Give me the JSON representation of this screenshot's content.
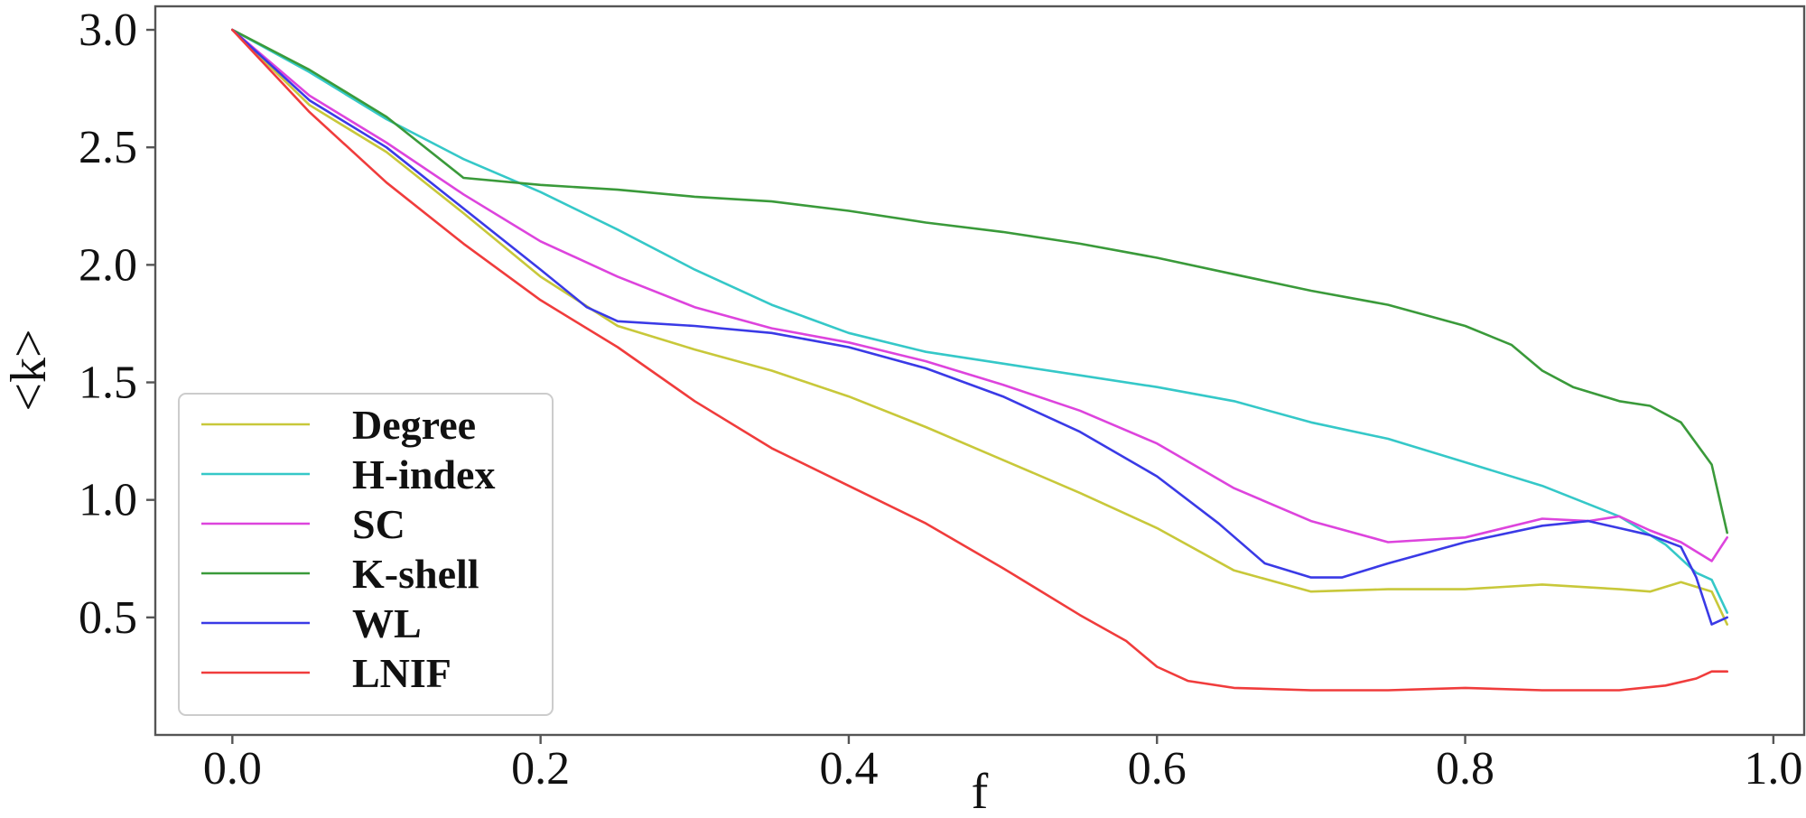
{
  "chart_data": {
    "type": "line",
    "title": "",
    "xlabel": "f",
    "ylabel": "<k>",
    "xlim": [
      -0.05,
      1.02
    ],
    "ylim": [
      0.0,
      3.1
    ],
    "xticks": [
      "0.0",
      "0.2",
      "0.4",
      "0.6",
      "0.8",
      "1.0"
    ],
    "yticks": [
      "0.5",
      "1.0",
      "1.5",
      "2.0",
      "2.5",
      "3.0"
    ],
    "grid": false,
    "legend_position": "lower-left",
    "series": [
      {
        "name": "Degree",
        "color": "#c8c83a",
        "points": [
          [
            0.0,
            3.0
          ],
          [
            0.05,
            2.68
          ],
          [
            0.1,
            2.48
          ],
          [
            0.15,
            2.22
          ],
          [
            0.2,
            1.95
          ],
          [
            0.25,
            1.74
          ],
          [
            0.3,
            1.64
          ],
          [
            0.35,
            1.55
          ],
          [
            0.4,
            1.44
          ],
          [
            0.45,
            1.31
          ],
          [
            0.5,
            1.17
          ],
          [
            0.55,
            1.03
          ],
          [
            0.6,
            0.88
          ],
          [
            0.65,
            0.7
          ],
          [
            0.7,
            0.61
          ],
          [
            0.75,
            0.62
          ],
          [
            0.8,
            0.62
          ],
          [
            0.85,
            0.64
          ],
          [
            0.9,
            0.62
          ],
          [
            0.92,
            0.61
          ],
          [
            0.94,
            0.65
          ],
          [
            0.96,
            0.61
          ],
          [
            0.97,
            0.47
          ]
        ]
      },
      {
        "name": "H-index",
        "color": "#35c8c8",
        "points": [
          [
            0.0,
            3.0
          ],
          [
            0.05,
            2.82
          ],
          [
            0.1,
            2.62
          ],
          [
            0.15,
            2.45
          ],
          [
            0.2,
            2.31
          ],
          [
            0.25,
            2.15
          ],
          [
            0.3,
            1.98
          ],
          [
            0.35,
            1.83
          ],
          [
            0.4,
            1.71
          ],
          [
            0.45,
            1.63
          ],
          [
            0.5,
            1.58
          ],
          [
            0.55,
            1.53
          ],
          [
            0.6,
            1.48
          ],
          [
            0.65,
            1.42
          ],
          [
            0.7,
            1.33
          ],
          [
            0.75,
            1.26
          ],
          [
            0.8,
            1.16
          ],
          [
            0.85,
            1.06
          ],
          [
            0.9,
            0.93
          ],
          [
            0.93,
            0.81
          ],
          [
            0.95,
            0.69
          ],
          [
            0.96,
            0.66
          ],
          [
            0.97,
            0.52
          ]
        ]
      },
      {
        "name": "SC",
        "color": "#dd44dd",
        "points": [
          [
            0.0,
            3.0
          ],
          [
            0.05,
            2.72
          ],
          [
            0.1,
            2.52
          ],
          [
            0.15,
            2.3
          ],
          [
            0.2,
            2.1
          ],
          [
            0.25,
            1.95
          ],
          [
            0.3,
            1.82
          ],
          [
            0.35,
            1.73
          ],
          [
            0.4,
            1.67
          ],
          [
            0.45,
            1.59
          ],
          [
            0.5,
            1.49
          ],
          [
            0.55,
            1.38
          ],
          [
            0.6,
            1.24
          ],
          [
            0.65,
            1.05
          ],
          [
            0.7,
            0.91
          ],
          [
            0.75,
            0.82
          ],
          [
            0.8,
            0.84
          ],
          [
            0.85,
            0.92
          ],
          [
            0.88,
            0.91
          ],
          [
            0.9,
            0.93
          ],
          [
            0.92,
            0.87
          ],
          [
            0.94,
            0.82
          ],
          [
            0.96,
            0.74
          ],
          [
            0.97,
            0.84
          ]
        ]
      },
      {
        "name": "K-shell",
        "color": "#3a9a3a",
        "points": [
          [
            0.0,
            3.0
          ],
          [
            0.05,
            2.83
          ],
          [
            0.1,
            2.63
          ],
          [
            0.15,
            2.37
          ],
          [
            0.2,
            2.34
          ],
          [
            0.25,
            2.32
          ],
          [
            0.3,
            2.29
          ],
          [
            0.35,
            2.27
          ],
          [
            0.4,
            2.23
          ],
          [
            0.45,
            2.18
          ],
          [
            0.5,
            2.14
          ],
          [
            0.55,
            2.09
          ],
          [
            0.6,
            2.03
          ],
          [
            0.65,
            1.96
          ],
          [
            0.7,
            1.89
          ],
          [
            0.75,
            1.83
          ],
          [
            0.8,
            1.74
          ],
          [
            0.83,
            1.66
          ],
          [
            0.85,
            1.55
          ],
          [
            0.87,
            1.48
          ],
          [
            0.9,
            1.42
          ],
          [
            0.92,
            1.4
          ],
          [
            0.94,
            1.33
          ],
          [
            0.96,
            1.15
          ],
          [
            0.97,
            0.86
          ]
        ]
      },
      {
        "name": "WL",
        "color": "#3a3ae6",
        "points": [
          [
            0.0,
            3.0
          ],
          [
            0.05,
            2.7
          ],
          [
            0.1,
            2.5
          ],
          [
            0.15,
            2.24
          ],
          [
            0.2,
            1.98
          ],
          [
            0.23,
            1.82
          ],
          [
            0.25,
            1.76
          ],
          [
            0.3,
            1.74
          ],
          [
            0.35,
            1.71
          ],
          [
            0.4,
            1.65
          ],
          [
            0.45,
            1.56
          ],
          [
            0.5,
            1.44
          ],
          [
            0.55,
            1.29
          ],
          [
            0.6,
            1.1
          ],
          [
            0.64,
            0.9
          ],
          [
            0.67,
            0.73
          ],
          [
            0.7,
            0.67
          ],
          [
            0.72,
            0.67
          ],
          [
            0.75,
            0.73
          ],
          [
            0.8,
            0.82
          ],
          [
            0.85,
            0.89
          ],
          [
            0.88,
            0.91
          ],
          [
            0.9,
            0.88
          ],
          [
            0.92,
            0.85
          ],
          [
            0.94,
            0.8
          ],
          [
            0.95,
            0.67
          ],
          [
            0.96,
            0.47
          ],
          [
            0.97,
            0.5
          ]
        ]
      },
      {
        "name": "LNIF",
        "color": "#f03c3c",
        "points": [
          [
            0.0,
            3.0
          ],
          [
            0.05,
            2.65
          ],
          [
            0.1,
            2.35
          ],
          [
            0.15,
            2.09
          ],
          [
            0.2,
            1.85
          ],
          [
            0.25,
            1.65
          ],
          [
            0.3,
            1.42
          ],
          [
            0.35,
            1.22
          ],
          [
            0.4,
            1.06
          ],
          [
            0.45,
            0.9
          ],
          [
            0.5,
            0.71
          ],
          [
            0.55,
            0.51
          ],
          [
            0.58,
            0.4
          ],
          [
            0.6,
            0.29
          ],
          [
            0.62,
            0.23
          ],
          [
            0.65,
            0.2
          ],
          [
            0.7,
            0.19
          ],
          [
            0.75,
            0.19
          ],
          [
            0.8,
            0.2
          ],
          [
            0.85,
            0.19
          ],
          [
            0.9,
            0.19
          ],
          [
            0.93,
            0.21
          ],
          [
            0.95,
            0.24
          ],
          [
            0.96,
            0.27
          ],
          [
            0.97,
            0.27
          ]
        ]
      }
    ]
  }
}
